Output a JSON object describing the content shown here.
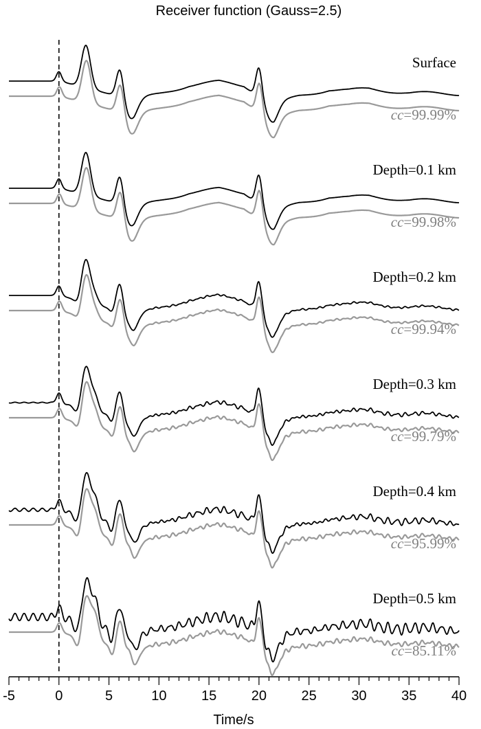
{
  "chart_data": {
    "type": "line",
    "title": "Receiver function (Gauss=2.5)",
    "xlabel": "Time/s",
    "ylabel": "",
    "xlim": [
      -5,
      40
    ],
    "xticks": [
      "-5",
      "0",
      "5",
      "10",
      "15",
      "20",
      "25",
      "30",
      "35",
      "40"
    ],
    "reference_line_x": 0,
    "colors": {
      "trace_a": "#000000",
      "trace_b": "#999999",
      "cc_label": "#808080"
    },
    "panels": [
      {
        "label": "Surface",
        "cc_prefix": "cc",
        "cc_value": "=99.99%",
        "ripple": 0.0,
        "jitter": 0.0,
        "split": 0.0
      },
      {
        "label": "Depth=0.1 km",
        "cc_prefix": "cc",
        "cc_value": "=99.98%",
        "ripple": 0.0,
        "jitter": 0.0,
        "split": 0.0
      },
      {
        "label": "Depth=0.2 km",
        "cc_prefix": "cc",
        "cc_value": "=99.94%",
        "ripple": 0.0,
        "jitter": 0.25,
        "split": 0.35
      },
      {
        "label": "Depth=0.3 km",
        "cc_prefix": "cc",
        "cc_value": "=99.79%",
        "ripple": 0.06,
        "jitter": 0.45,
        "split": 0.6
      },
      {
        "label": "Depth=0.4 km",
        "cc_prefix": "cc",
        "cc_value": "=95.99%",
        "ripple": 0.22,
        "jitter": 0.55,
        "split": 0.8
      },
      {
        "label": "Depth=0.5 km",
        "cc_prefix": "cc",
        "cc_value": "=85.11%",
        "ripple": 0.5,
        "jitter": 0.65,
        "split": 1.0
      }
    ],
    "pulses": [
      {
        "t": 0.0,
        "amp": 0.22,
        "w": 0.25
      },
      {
        "t": 2.7,
        "amp": 1.0,
        "w": 0.45
      },
      {
        "t": 6.1,
        "amp": 0.7,
        "w": 0.35
      },
      {
        "t": 7.2,
        "amp": -0.45,
        "w": 0.6
      },
      {
        "t": 20.0,
        "amp": 0.7,
        "w": 0.3
      },
      {
        "t": 21.3,
        "amp": -0.45,
        "w": 0.6
      }
    ],
    "envelope": [
      [
        -5,
        0.0
      ],
      [
        0,
        0.0
      ],
      [
        7.5,
        -0.45
      ],
      [
        10,
        -0.3
      ],
      [
        13,
        -0.1
      ],
      [
        16,
        -0.02
      ],
      [
        18.5,
        -0.1
      ],
      [
        21.5,
        -0.55
      ],
      [
        24,
        -0.35
      ],
      [
        27,
        -0.2
      ],
      [
        29,
        -0.22
      ],
      [
        31,
        -0.18
      ],
      [
        35,
        -0.28
      ],
      [
        40,
        -0.3
      ]
    ]
  }
}
